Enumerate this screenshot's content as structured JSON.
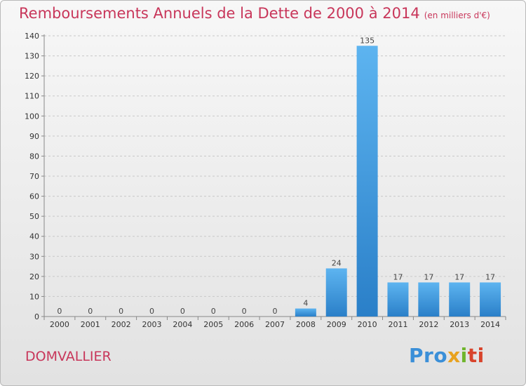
{
  "header": {
    "title": "Remboursements Annuels de la Dette de 2000 à 2014",
    "unit": "(en milliers d'€)"
  },
  "footer": {
    "city": "DOMVALLIER",
    "logo": "Proxiti"
  },
  "colors": {
    "title": "#c8365a",
    "bar_top": "#5db4f0",
    "bar_bottom": "#2a7fc8",
    "grid": "#c8c8c8"
  },
  "chart_data": {
    "type": "bar",
    "title": "Remboursements Annuels de la Dette de 2000 à 2014",
    "subtitle": "(en milliers d'€)",
    "xlabel": "",
    "ylabel": "",
    "categories": [
      "2000",
      "2001",
      "2002",
      "2003",
      "2004",
      "2005",
      "2006",
      "2007",
      "2008",
      "2009",
      "2010",
      "2011",
      "2012",
      "2013",
      "2014"
    ],
    "values": [
      0,
      0,
      0,
      0,
      0,
      0,
      0,
      0,
      4,
      24,
      135,
      17,
      17,
      17,
      17
    ],
    "ylim": [
      0,
      140
    ],
    "yticks": [
      0,
      10,
      20,
      30,
      40,
      50,
      60,
      70,
      80,
      90,
      100,
      110,
      120,
      130,
      140
    ],
    "grid": "horizontal dashed",
    "legend": "none"
  }
}
